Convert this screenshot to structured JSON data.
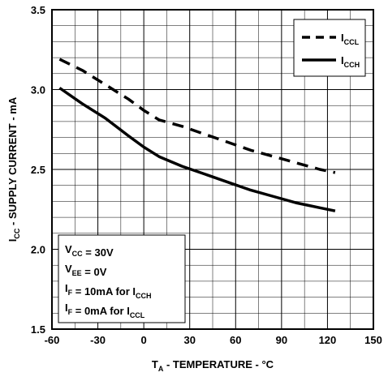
{
  "chart_data": {
    "type": "line",
    "xlabel": {
      "main": "T",
      "sub": "A",
      "rest": " - TEMPERATURE - °C"
    },
    "ylabel": {
      "main": "I",
      "sub": "CC",
      "rest": " - SUPPLY CURRENT - mA"
    },
    "xlim": [
      -60,
      150
    ],
    "ylim": [
      1.5,
      3.5
    ],
    "x_ticks": [
      "-60",
      "-30",
      "0",
      "30",
      "60",
      "90",
      "120",
      "150"
    ],
    "y_ticks": [
      "1.5",
      "2.0",
      "2.5",
      "3.0",
      "3.5"
    ],
    "grid": true,
    "legend_position": "top-right",
    "series": [
      {
        "name": {
          "main": "I",
          "sub": "CCL"
        },
        "style": "dashed",
        "x": [
          -55,
          -40,
          -25,
          -10,
          0,
          10,
          25,
          40,
          55,
          70,
          85,
          100,
          115,
          125
        ],
        "y": [
          3.19,
          3.12,
          3.03,
          2.94,
          2.87,
          2.81,
          2.77,
          2.72,
          2.67,
          2.62,
          2.58,
          2.54,
          2.5,
          2.48
        ]
      },
      {
        "name": {
          "main": "I",
          "sub": "CCH"
        },
        "style": "solid",
        "x": [
          -55,
          -40,
          -25,
          -10,
          0,
          10,
          25,
          40,
          55,
          70,
          85,
          100,
          115,
          125
        ],
        "y": [
          3.01,
          2.91,
          2.82,
          2.71,
          2.64,
          2.58,
          2.52,
          2.47,
          2.42,
          2.37,
          2.33,
          2.29,
          2.26,
          2.24
        ]
      }
    ],
    "conditions": [
      {
        "parts": [
          {
            "t": "V"
          },
          {
            "t": "CC",
            "sub": true
          },
          {
            "t": " = 30V"
          }
        ]
      },
      {
        "parts": [
          {
            "t": "V"
          },
          {
            "t": "EE",
            "sub": true
          },
          {
            "t": " = 0V"
          }
        ]
      },
      {
        "parts": [
          {
            "t": "I"
          },
          {
            "t": "F",
            "sub": true
          },
          {
            "t": " = 10mA for I"
          },
          {
            "t": "CCH",
            "sub": true
          }
        ]
      },
      {
        "parts": [
          {
            "t": "I"
          },
          {
            "t": "F",
            "sub": true
          },
          {
            "t": " = 0mA for I"
          },
          {
            "t": "CCL",
            "sub": true
          }
        ]
      }
    ]
  }
}
